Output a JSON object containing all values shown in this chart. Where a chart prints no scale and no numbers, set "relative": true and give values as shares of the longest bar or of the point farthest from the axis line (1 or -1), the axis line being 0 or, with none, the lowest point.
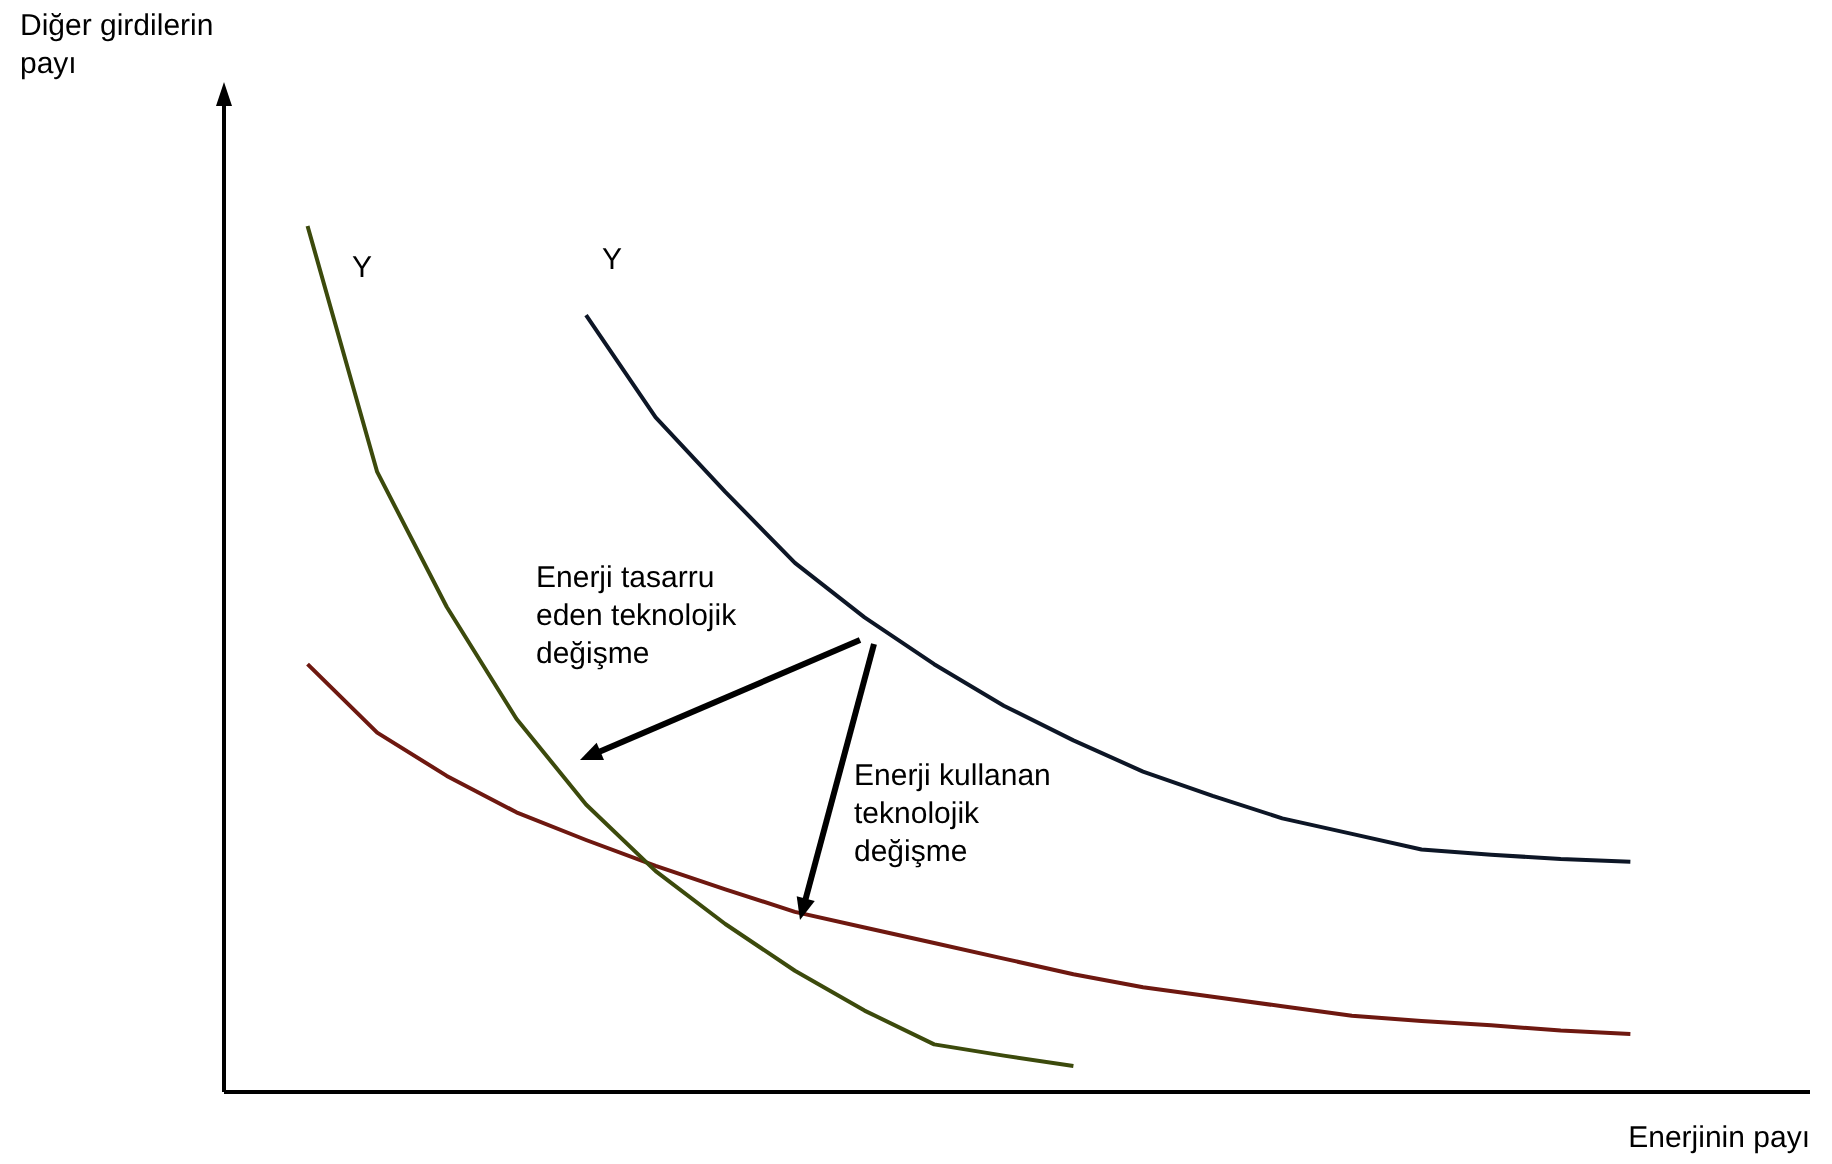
{
  "chart_data": {
    "type": "line",
    "relative": true,
    "marker": "none",
    "legend": false,
    "xlabel": "Enerjinin payı",
    "categories": [
      null,
      null,
      null,
      null,
      null,
      null,
      null,
      null,
      null,
      null,
      null,
      null,
      null,
      null,
      null,
      null,
      null,
      null,
      null,
      null
    ],
    "series": [
      {
        "color": "#0d1626",
        "values": [
          null,
          null,
          null,
          null,
          0.897,
          0.779,
          0.693,
          0.611,
          0.548,
          0.494,
          0.446,
          0.406,
          0.37,
          0.342,
          0.316,
          0.298,
          0.28,
          0.274,
          0.269,
          0.266
        ]
      },
      {
        "color": "#3c4a0c",
        "values": [
          1.0,
          0.716,
          0.56,
          0.431,
          0.332,
          0.255,
          0.194,
          0.14,
          0.094,
          0.055,
          0.042,
          0.03,
          null,
          null,
          null,
          null,
          null,
          null,
          null,
          null
        ]
      },
      {
        "color": "#6e1810",
        "values": [
          0.494,
          0.415,
          0.365,
          0.323,
          0.291,
          0.261,
          0.234,
          0.208,
          0.19,
          0.172,
          0.154,
          0.136,
          0.121,
          0.11,
          0.099,
          0.088,
          0.082,
          0.077,
          0.071,
          0.067
        ]
      }
    ],
    "annotations": [
      "Diğer girdilerin\npayı",
      "Y",
      "Y",
      "Enerji tasarru\neden teknolojik\ndeğişme",
      "Enerji kullanan\nteknolojik\ndeğişme"
    ]
  }
}
